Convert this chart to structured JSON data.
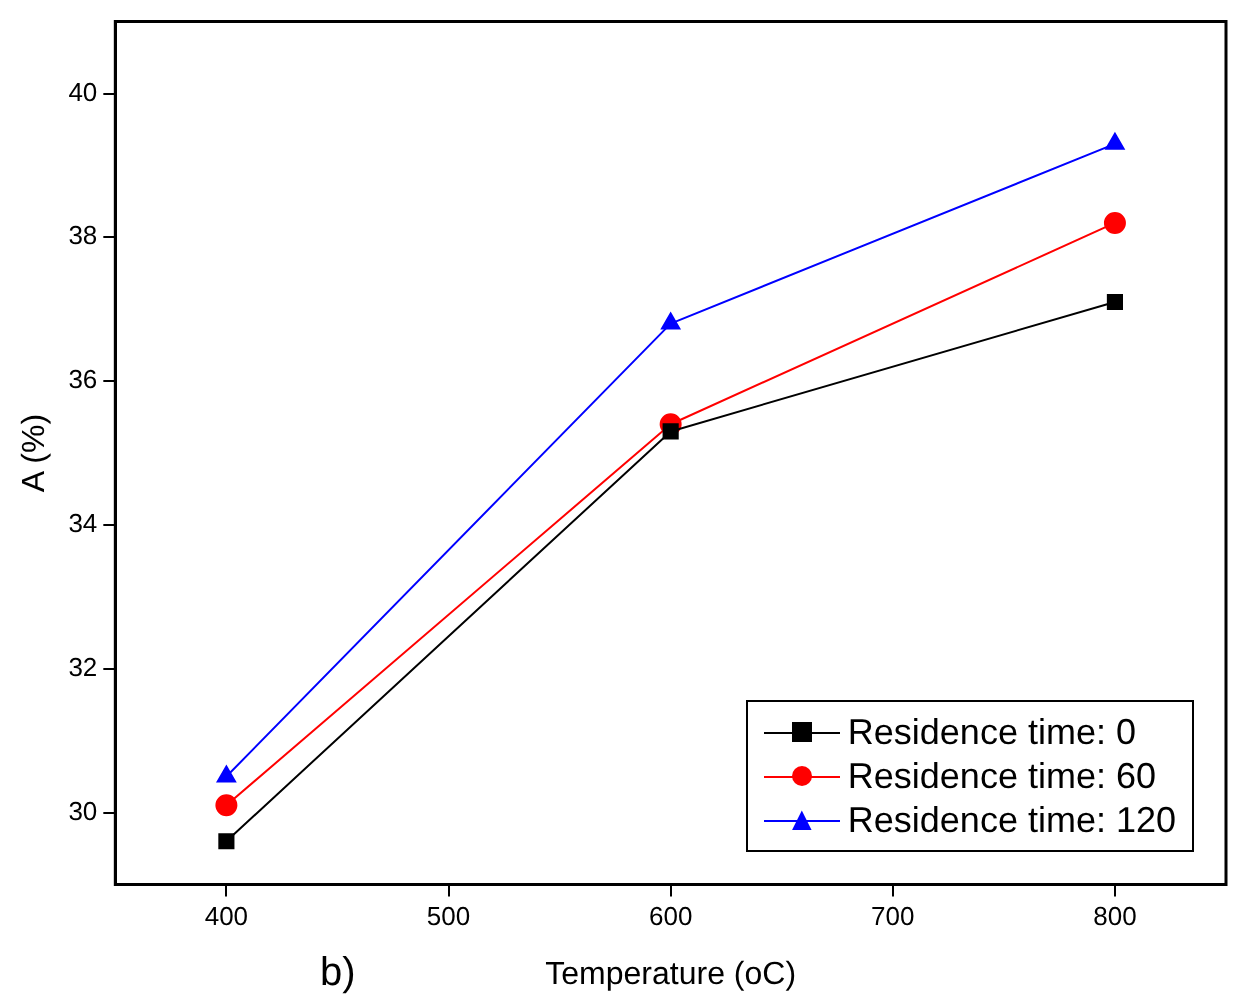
{
  "chart_data": {
    "type": "line",
    "xlabel": "Temperature (oC)",
    "ylabel": "A (%)",
    "annotations": [
      "b)"
    ],
    "x": [
      400,
      600,
      800
    ],
    "series": [
      {
        "name": "Residence time: 0",
        "color": "#000000",
        "marker": "square",
        "values": [
          29.6,
          35.3,
          37.1
        ]
      },
      {
        "name": "Residence time: 60",
        "color": "#ff0000",
        "marker": "circle",
        "values": [
          30.1,
          35.4,
          38.2
        ]
      },
      {
        "name": "Residence time: 120",
        "color": "#0000ff",
        "marker": "triangle",
        "values": [
          30.5,
          36.8,
          39.3
        ]
      }
    ],
    "xlim": [
      350,
      850
    ],
    "xticks": [
      400,
      500,
      600,
      700,
      800
    ],
    "ylim": [
      29,
      41
    ],
    "yticks": [
      30,
      32,
      34,
      36,
      38,
      40
    ],
    "grid": false,
    "legend": "bottom right",
    "line_style": "solid"
  }
}
